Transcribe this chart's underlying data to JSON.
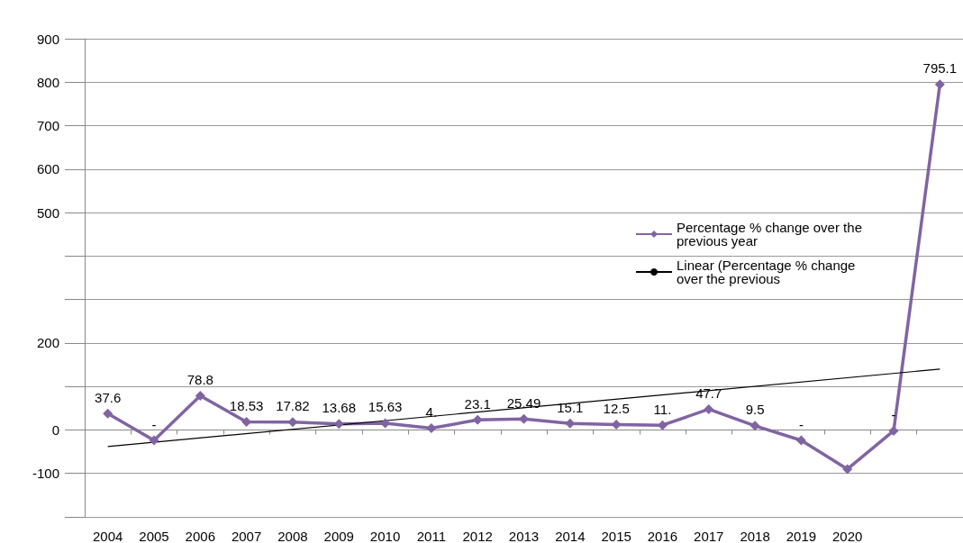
{
  "chart_data": {
    "type": "line",
    "categories": [
      "2004",
      "2005",
      "2006",
      "2007",
      "2008",
      "2009",
      "2010",
      "2011",
      "2012",
      "2013",
      "2014",
      "2015",
      "2016",
      "2017",
      "2018",
      "2019",
      "2020",
      null,
      null
    ],
    "series": [
      {
        "name": "Percentage % change over the previous year",
        "color": "#8064a2",
        "marker": "diamond",
        "values": [
          37.6,
          -24,
          78.8,
          18.53,
          17.82,
          13.68,
          15.63,
          4,
          23.1,
          25.49,
          15.1,
          12.5,
          11,
          47.7,
          9.5,
          -24,
          -90,
          -2,
          795.1
        ],
        "value_labels": [
          "37.6",
          "-",
          "78.8",
          "18.53",
          "17.82",
          "13.68",
          "15.63",
          "4.",
          "23.1",
          "25.49",
          "15.1",
          "12.5",
          "11.",
          "47.7",
          "9.5",
          "-",
          null,
          "-",
          "795.1"
        ]
      },
      {
        "name": "Linear (Percentage % change over the previous",
        "color": "#000000",
        "marker": "none",
        "values": [
          -38,
          null,
          null,
          null,
          null,
          null,
          null,
          null,
          null,
          null,
          null,
          null,
          null,
          null,
          null,
          null,
          null,
          null,
          140
        ]
      }
    ],
    "ylim": [
      -200,
      900
    ],
    "yticks": [
      {
        "value": -200,
        "label": null
      },
      {
        "value": -100,
        "label": "-100"
      },
      0,
      {
        "value": 100,
        "label": null
      },
      {
        "value": 200,
        "label": "200"
      },
      {
        "value": 300,
        "label": null
      },
      {
        "value": 400,
        "label": null
      },
      {
        "value": 500,
        "label": "500"
      },
      {
        "value": 600,
        "label": "600"
      },
      {
        "value": 700,
        "label": "700"
      },
      {
        "value": 800,
        "label": "800"
      },
      {
        "value": 900,
        "label": "900"
      }
    ],
    "grid": "y",
    "legend": "right"
  }
}
